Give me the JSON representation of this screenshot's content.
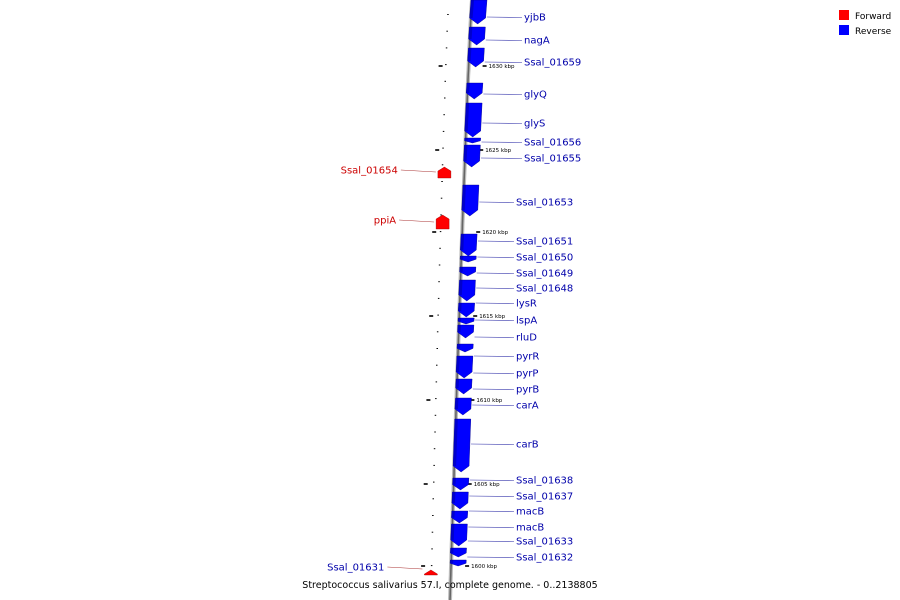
{
  "title": "Streptococcus salivarius 57.I, complete genome. - 0..2138805",
  "colors": {
    "forward": "#ff0000",
    "reverse": "#0000ff",
    "forward_label": "#cc0000",
    "reverse_label": "#0000aa",
    "backbone": "#888888"
  },
  "legend": [
    {
      "name": "Forward",
      "color": "#ff0000"
    },
    {
      "name": "Reverse",
      "color": "#0000ff"
    }
  ],
  "ticks": [
    "1630 kbp",
    "1625 kbp",
    "1620 kbp",
    "1615 kbp",
    "1610 kbp",
    "1605 kbp",
    "1600 kbp"
  ],
  "genes": [
    {
      "name": "yjbB",
      "strand": "reverse"
    },
    {
      "name": "nagA",
      "strand": "reverse"
    },
    {
      "name": "Ssal_01659",
      "strand": "reverse"
    },
    {
      "name": "glyQ",
      "strand": "reverse"
    },
    {
      "name": "glyS",
      "strand": "reverse"
    },
    {
      "name": "Ssal_01656",
      "strand": "reverse"
    },
    {
      "name": "Ssal_01655",
      "strand": "reverse"
    },
    {
      "name": "Ssal_01654",
      "strand": "forward"
    },
    {
      "name": "Ssal_01653",
      "strand": "reverse"
    },
    {
      "name": "ppiA",
      "strand": "forward"
    },
    {
      "name": "Ssal_01651",
      "strand": "reverse"
    },
    {
      "name": "Ssal_01650",
      "strand": "reverse"
    },
    {
      "name": "Ssal_01649",
      "strand": "reverse"
    },
    {
      "name": "Ssal_01648",
      "strand": "reverse"
    },
    {
      "name": "lysR",
      "strand": "reverse"
    },
    {
      "name": "lspA",
      "strand": "reverse"
    },
    {
      "name": "rluD",
      "strand": "reverse"
    },
    {
      "name": "pyrR",
      "strand": "reverse"
    },
    {
      "name": "pyrP",
      "strand": "reverse"
    },
    {
      "name": "pyrB",
      "strand": "reverse"
    },
    {
      "name": "carA",
      "strand": "reverse"
    },
    {
      "name": "carB",
      "strand": "reverse"
    },
    {
      "name": "Ssal_01638",
      "strand": "reverse"
    },
    {
      "name": "Ssal_01637",
      "strand": "reverse"
    },
    {
      "name": "macB",
      "strand": "reverse"
    },
    {
      "name": "macB",
      "strand": "reverse"
    },
    {
      "name": "Ssal_01633",
      "strand": "reverse"
    },
    {
      "name": "Ssal_01632",
      "strand": "reverse"
    },
    {
      "name": "Ssal_01631",
      "strand": "forward"
    }
  ]
}
